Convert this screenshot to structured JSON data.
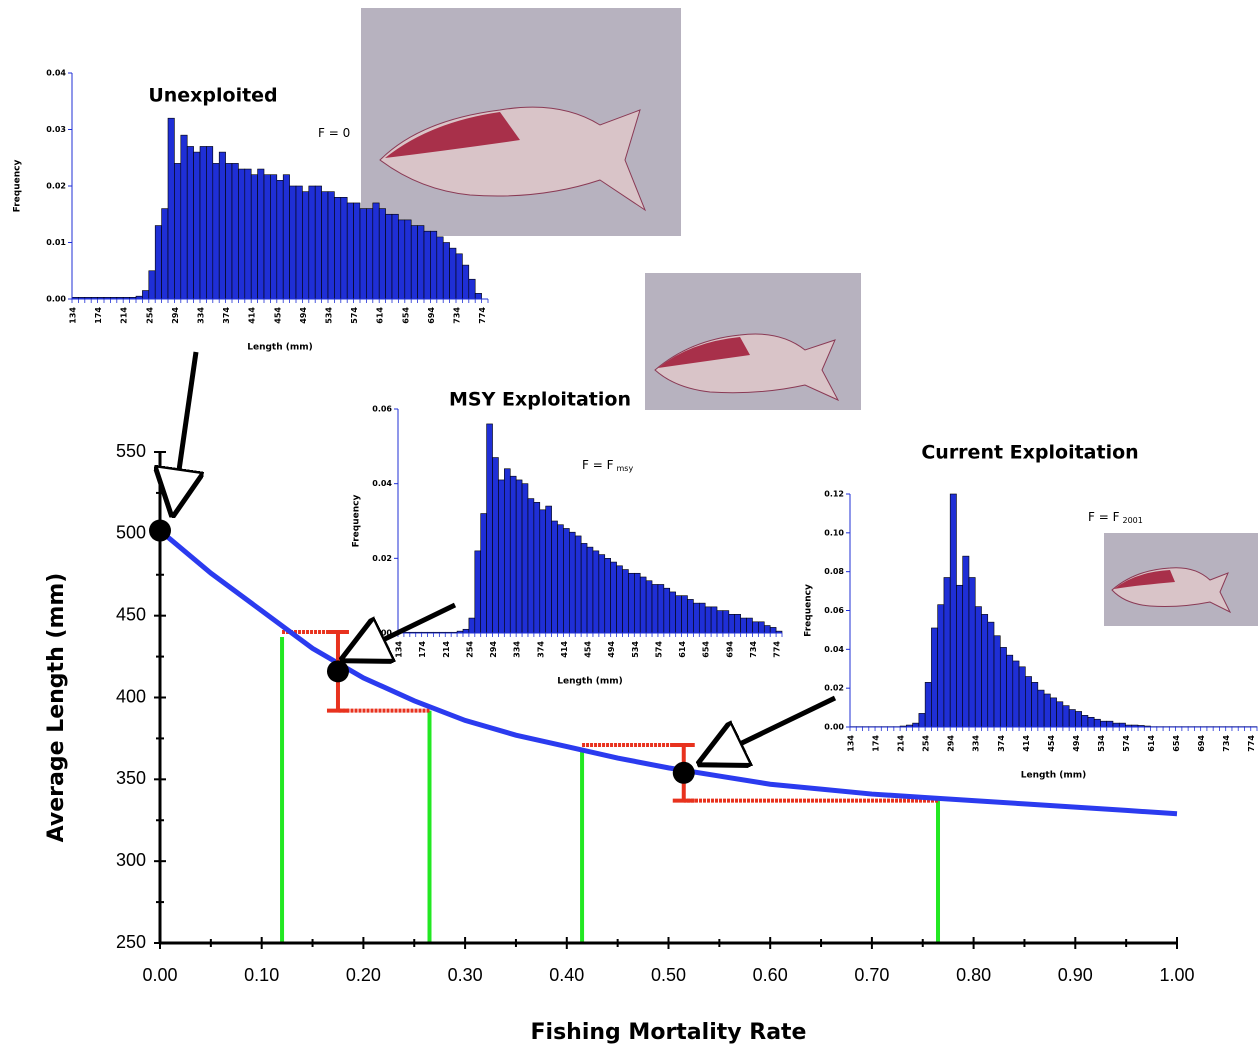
{
  "chart_data": [
    {
      "type": "line",
      "x_label": "Fishing Mortality Rate",
      "y_label": "Average Length (mm)",
      "xlim": [
        0,
        1
      ],
      "ylim": [
        250,
        550
      ],
      "xticks": [
        {
          "value": 0,
          "label": "0.00"
        },
        {
          "value": 0.1,
          "label": "0.10"
        },
        {
          "value": 0.2,
          "label": "0.20"
        },
        {
          "value": 0.3,
          "label": "0.30"
        },
        {
          "value": 0.4,
          "label": "0.40"
        },
        {
          "value": 0.5,
          "label": "0.50"
        },
        {
          "value": 0.6,
          "label": "0.60"
        },
        {
          "value": 0.7,
          "label": "0.70"
        },
        {
          "value": 0.8,
          "label": "0.80"
        },
        {
          "value": 0.9,
          "label": "0.90"
        },
        {
          "value": 1,
          "label": "1.00"
        }
      ],
      "yticks": [
        250,
        300,
        350,
        400,
        450,
        500,
        550
      ],
      "x": [
        0,
        0.05,
        0.1,
        0.15,
        0.2,
        0.25,
        0.3,
        0.35,
        0.4,
        0.45,
        0.5,
        0.55,
        0.6,
        0.65,
        0.7,
        0.75,
        0.8,
        0.85,
        0.9,
        0.95,
        1
      ],
      "values": [
        502,
        476,
        453,
        430,
        412,
        398,
        386,
        377,
        370,
        363,
        357,
        352,
        347,
        344,
        341,
        339,
        337,
        335,
        333,
        331,
        329
      ],
      "color": "#2b3bef",
      "points": {
        "x": [
          0,
          0.175,
          0.515
        ],
        "values": [
          502,
          416,
          354
        ],
        "errors": [
          null,
          24,
          17
        ],
        "color": "#000000",
        "error_color": "#e8321e"
      },
      "reference_lines": {
        "x": [
          0.12,
          0.265,
          0.415,
          0.765
        ],
        "values": [
          437,
          392,
          369,
          338
        ],
        "color": "#22e822"
      }
    },
    {
      "type": "histogram",
      "title": "Unexploited",
      "annotation": "F = 0",
      "x_label": "Length (mm)",
      "y_label": "Frequency",
      "color": "#1f2fd6",
      "bins": [
        134,
        144,
        154,
        164,
        174,
        184,
        194,
        204,
        214,
        224,
        234,
        244,
        254,
        264,
        274,
        284,
        294,
        304,
        314,
        324,
        334,
        344,
        354,
        364,
        374,
        384,
        394,
        404,
        414,
        424,
        434,
        444,
        454,
        464,
        474,
        484,
        494,
        504,
        514,
        524,
        534,
        544,
        554,
        564,
        574,
        584,
        594,
        604,
        614,
        624,
        634,
        644,
        654,
        664,
        674,
        684,
        694,
        704,
        714,
        724,
        734,
        744,
        754,
        764,
        774,
        784
      ],
      "values": [
        0.0003,
        0.0003,
        0.0003,
        0.0003,
        0.0003,
        0.0003,
        0.0003,
        0.0003,
        0.0003,
        0.0003,
        0.0005,
        0.0015,
        0.005,
        0.013,
        0.016,
        0.032,
        0.024,
        0.029,
        0.027,
        0.026,
        0.027,
        0.027,
        0.024,
        0.026,
        0.024,
        0.024,
        0.023,
        0.023,
        0.022,
        0.023,
        0.022,
        0.022,
        0.021,
        0.022,
        0.02,
        0.02,
        0.019,
        0.02,
        0.02,
        0.019,
        0.019,
        0.018,
        0.018,
        0.017,
        0.017,
        0.016,
        0.016,
        0.017,
        0.016,
        0.015,
        0.015,
        0.014,
        0.014,
        0.013,
        0.013,
        0.012,
        0.012,
        0.011,
        0.01,
        0.009,
        0.008,
        0.006,
        0.0035,
        0.001,
        0
      ],
      "xlim": [
        134,
        784
      ],
      "xticks": [
        134,
        174,
        214,
        254,
        294,
        334,
        374,
        414,
        454,
        494,
        534,
        574,
        614,
        654,
        694,
        734,
        774
      ],
      "ylim": [
        0,
        0.04
      ],
      "yticks": [
        {
          "value": 0,
          "label": "0.00"
        },
        0.01,
        0.02,
        0.03,
        0.04
      ]
    },
    {
      "type": "histogram",
      "title": "MSY Exploitation",
      "annotation": "F = F",
      "annotation_sub": "msy",
      "x_label": "Length (mm)",
      "y_label": "Frequency",
      "color": "#1f2fd6",
      "bins": [
        134,
        144,
        154,
        164,
        174,
        184,
        194,
        204,
        214,
        224,
        234,
        244,
        254,
        264,
        274,
        284,
        294,
        304,
        314,
        324,
        334,
        344,
        354,
        364,
        374,
        384,
        394,
        404,
        414,
        424,
        434,
        444,
        454,
        464,
        474,
        484,
        494,
        504,
        514,
        524,
        534,
        544,
        554,
        564,
        574,
        584,
        594,
        604,
        614,
        624,
        634,
        644,
        654,
        664,
        674,
        684,
        694,
        704,
        714,
        724,
        734,
        744,
        754,
        764,
        774,
        784
      ],
      "values": [
        0.0002,
        0.0002,
        0.0002,
        0.0002,
        0.0002,
        0.0002,
        0.0002,
        0.0002,
        0.0002,
        0.0002,
        0.0005,
        0.001,
        0.004,
        0.022,
        0.032,
        0.056,
        0.047,
        0.041,
        0.044,
        0.042,
        0.041,
        0.04,
        0.036,
        0.035,
        0.033,
        0.034,
        0.03,
        0.029,
        0.028,
        0.027,
        0.026,
        0.024,
        0.023,
        0.022,
        0.021,
        0.02,
        0.019,
        0.018,
        0.017,
        0.016,
        0.016,
        0.015,
        0.014,
        0.013,
        0.013,
        0.012,
        0.011,
        0.01,
        0.01,
        0.009,
        0.008,
        0.008,
        0.007,
        0.007,
        0.006,
        0.006,
        0.005,
        0.005,
        0.004,
        0.004,
        0.003,
        0.003,
        0.002,
        0.0015,
        0.0005
      ],
      "xlim": [
        134,
        784
      ],
      "xticks": [
        134,
        174,
        214,
        254,
        294,
        334,
        374,
        414,
        454,
        494,
        534,
        574,
        614,
        654,
        694,
        734,
        774
      ],
      "ylim": [
        0,
        0.06
      ],
      "yticks": [
        {
          "value": 0,
          "label": "0.00"
        },
        0.02,
        0.04,
        0.06
      ]
    },
    {
      "type": "histogram",
      "title": "Current Exploitation",
      "annotation": "F = F",
      "annotation_sub": "2001",
      "x_label": "Length (mm)",
      "y_label": "Frequency",
      "color": "#1f2fd6",
      "bins": [
        134,
        144,
        154,
        164,
        174,
        184,
        194,
        204,
        214,
        224,
        234,
        244,
        254,
        264,
        274,
        284,
        294,
        304,
        314,
        324,
        334,
        344,
        354,
        364,
        374,
        384,
        394,
        404,
        414,
        424,
        434,
        444,
        454,
        464,
        474,
        484,
        494,
        504,
        514,
        524,
        534,
        544,
        554,
        564,
        574,
        584,
        594,
        604,
        614,
        624,
        634,
        644,
        654,
        664,
        674,
        684,
        694,
        704,
        714,
        724,
        734,
        744,
        754,
        764,
        774,
        784
      ],
      "values": [
        0.0002,
        0.0002,
        0.0002,
        0.0002,
        0.0002,
        0.0002,
        0.0002,
        0.0002,
        0.0005,
        0.001,
        0.002,
        0.007,
        0.023,
        0.051,
        0.063,
        0.077,
        0.12,
        0.073,
        0.088,
        0.077,
        0.062,
        0.058,
        0.054,
        0.047,
        0.041,
        0.037,
        0.034,
        0.031,
        0.026,
        0.023,
        0.019,
        0.017,
        0.015,
        0.013,
        0.011,
        0.009,
        0.008,
        0.006,
        0.005,
        0.004,
        0.003,
        0.003,
        0.002,
        0.002,
        0.001,
        0.001,
        0.0008,
        0.0005,
        0.0002,
        0.0002,
        0.0002,
        0.0002,
        0.0002,
        0.0002,
        0.0002,
        0.0002,
        0.0002,
        0.0002,
        0.0002,
        0.0002,
        0.0002,
        0.0002,
        0.0002,
        0.0002,
        0.0002
      ],
      "xlim": [
        134,
        784
      ],
      "xticks": [
        134,
        174,
        214,
        254,
        294,
        334,
        374,
        414,
        454,
        494,
        534,
        574,
        614,
        654,
        694,
        734,
        774
      ],
      "ylim": [
        0,
        0.12
      ],
      "yticks": [
        {
          "value": 0,
          "label": "0.00"
        },
        0.02,
        0.04,
        0.06,
        0.08,
        {
          "value": 0.1,
          "label": "0.10"
        },
        0.12
      ]
    }
  ]
}
